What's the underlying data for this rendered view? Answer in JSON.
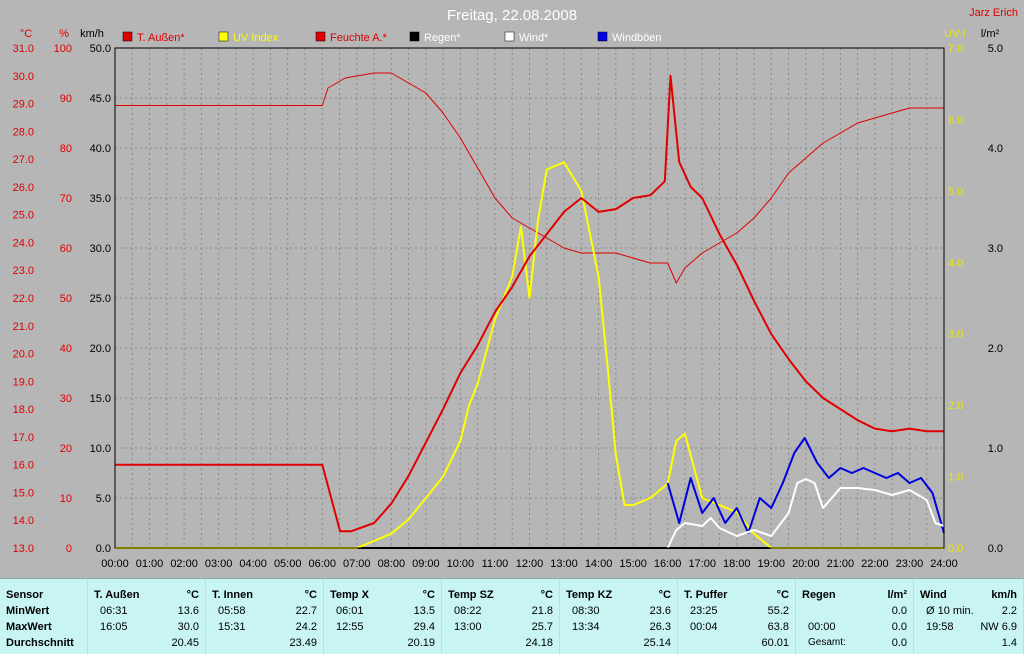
{
  "header": {
    "title": "Freitag, 22.08.2008",
    "author": "Jarz Erich"
  },
  "axes": {
    "temp_unit": "°C",
    "humidity_unit": "%",
    "wind_unit": "km/h",
    "uv_unit": "UV-I",
    "rain_unit": "l/m²",
    "temp_ticks": [
      "31.0",
      "30.0",
      "29.0",
      "28.0",
      "27.0",
      "26.0",
      "25.0",
      "24.0",
      "23.0",
      "22.0",
      "21.0",
      "20.0",
      "19.0",
      "18.0",
      "17.0",
      "16.0",
      "15.0",
      "14.0",
      "13.0"
    ],
    "hum_ticks": [
      "100",
      "90",
      "80",
      "70",
      "60",
      "50",
      "40",
      "30",
      "20",
      "10",
      "0"
    ],
    "wind_ticks": [
      "50.0",
      "45.0",
      "40.0",
      "35.0",
      "30.0",
      "25.0",
      "20.0",
      "15.0",
      "10.0",
      "5.0",
      "0.0"
    ],
    "uv_ticks": [
      "7.0",
      "6.0",
      "5.0",
      "4.0",
      "3.0",
      "2.0",
      "1.0",
      "0.0"
    ],
    "rain_ticks": [
      "5.0",
      "4.0",
      "3.0",
      "2.0",
      "1.0",
      "0.0"
    ],
    "x_ticks": [
      "00:00",
      "01:00",
      "02:00",
      "03:00",
      "04:00",
      "05:00",
      "06:00",
      "07:00",
      "08:00",
      "09:00",
      "10:00",
      "11:00",
      "12:00",
      "13:00",
      "14:00",
      "15:00",
      "16:00",
      "17:00",
      "18:00",
      "19:00",
      "20:00",
      "21:00",
      "22:00",
      "23:00",
      "24:00"
    ]
  },
  "legend": [
    {
      "label": "T. Außen*",
      "color": "#e00000"
    },
    {
      "label": "UV Index",
      "color": "#ffff00"
    },
    {
      "label": "Feuchte A.*",
      "color": "#e00000"
    },
    {
      "label": "Regen*",
      "color": "#000000"
    },
    {
      "label": "Wind*",
      "color": "#ffffff"
    },
    {
      "label": "Windböen",
      "color": "#0000e0"
    }
  ],
  "colors": {
    "temp": "#e00000",
    "humidity": "#e00000",
    "uv": "#ffff00",
    "wind": "#ffffff",
    "gust": "#0000e0",
    "rain": "#000000",
    "grid": "#8a8a8a",
    "plot_bg": "#b6b6b6"
  },
  "chart_data": {
    "type": "line",
    "title": "Freitag, 22.08.2008",
    "x_range": [
      "00:00",
      "24:00"
    ],
    "series": [
      {
        "name": "T. Außen*",
        "axis": "°C",
        "ylim": [
          13.0,
          31.0
        ],
        "points": [
          [
            "00:00",
            16.0
          ],
          [
            "06:00",
            16.0
          ],
          [
            "06:31",
            13.6
          ],
          [
            "06:50",
            13.6
          ],
          [
            "07:30",
            13.9
          ],
          [
            "08:00",
            14.6
          ],
          [
            "08:30",
            15.6
          ],
          [
            "09:00",
            16.8
          ],
          [
            "09:30",
            18.0
          ],
          [
            "10:00",
            19.3
          ],
          [
            "10:30",
            20.3
          ],
          [
            "11:00",
            21.5
          ],
          [
            "11:30",
            22.4
          ],
          [
            "12:00",
            23.5
          ],
          [
            "12:30",
            24.3
          ],
          [
            "13:00",
            25.1
          ],
          [
            "13:30",
            25.6
          ],
          [
            "14:00",
            25.1
          ],
          [
            "14:30",
            25.2
          ],
          [
            "15:00",
            25.6
          ],
          [
            "15:30",
            25.7
          ],
          [
            "15:55",
            26.2
          ],
          [
            "16:05",
            30.0
          ],
          [
            "16:20",
            26.9
          ],
          [
            "16:40",
            26.0
          ],
          [
            "17:00",
            25.6
          ],
          [
            "17:30",
            24.3
          ],
          [
            "18:00",
            23.2
          ],
          [
            "18:30",
            21.9
          ],
          [
            "19:00",
            20.7
          ],
          [
            "19:30",
            19.8
          ],
          [
            "20:00",
            19.0
          ],
          [
            "20:30",
            18.4
          ],
          [
            "21:00",
            18.0
          ],
          [
            "21:30",
            17.6
          ],
          [
            "22:00",
            17.3
          ],
          [
            "22:30",
            17.2
          ],
          [
            "23:00",
            17.3
          ],
          [
            "23:30",
            17.2
          ],
          [
            "24:00",
            17.2
          ]
        ]
      },
      {
        "name": "Feuchte A.*",
        "axis": "%",
        "ylim": [
          0,
          100
        ],
        "points": [
          [
            "00:00",
            88.5
          ],
          [
            "06:00",
            88.5
          ],
          [
            "06:10",
            92
          ],
          [
            "06:40",
            94
          ],
          [
            "07:30",
            95
          ],
          [
            "08:00",
            95
          ],
          [
            "08:30",
            93
          ],
          [
            "09:00",
            91
          ],
          [
            "09:30",
            87
          ],
          [
            "10:00",
            82
          ],
          [
            "10:30",
            76
          ],
          [
            "11:00",
            70
          ],
          [
            "11:30",
            66
          ],
          [
            "12:00",
            64
          ],
          [
            "12:30",
            62
          ],
          [
            "13:00",
            60
          ],
          [
            "13:30",
            59
          ],
          [
            "14:00",
            59
          ],
          [
            "14:30",
            59
          ],
          [
            "15:00",
            58
          ],
          [
            "15:30",
            57
          ],
          [
            "16:00",
            57
          ],
          [
            "16:15",
            53
          ],
          [
            "16:30",
            56
          ],
          [
            "17:00",
            59
          ],
          [
            "17:30",
            61
          ],
          [
            "18:00",
            63
          ],
          [
            "18:30",
            66
          ],
          [
            "19:00",
            70
          ],
          [
            "19:30",
            75
          ],
          [
            "20:00",
            78
          ],
          [
            "20:30",
            81
          ],
          [
            "21:00",
            83
          ],
          [
            "21:30",
            85
          ],
          [
            "22:00",
            86
          ],
          [
            "22:30",
            87
          ],
          [
            "23:00",
            88
          ],
          [
            "24:00",
            88
          ]
        ]
      },
      {
        "name": "UV Index",
        "axis": "UV-I",
        "ylim": [
          0,
          7
        ],
        "points": [
          [
            "00:00",
            0
          ],
          [
            "07:00",
            0
          ],
          [
            "07:30",
            0.1
          ],
          [
            "08:00",
            0.2
          ],
          [
            "08:30",
            0.4
          ],
          [
            "09:00",
            0.7
          ],
          [
            "09:30",
            1.0
          ],
          [
            "10:00",
            1.5
          ],
          [
            "10:15",
            2.0
          ],
          [
            "10:30",
            2.3
          ],
          [
            "11:00",
            3.2
          ],
          [
            "11:30",
            3.8
          ],
          [
            "11:45",
            4.5
          ],
          [
            "12:00",
            3.5
          ],
          [
            "12:15",
            4.6
          ],
          [
            "12:30",
            5.3
          ],
          [
            "13:00",
            5.4
          ],
          [
            "13:15",
            5.2
          ],
          [
            "13:30",
            5.0
          ],
          [
            "14:00",
            3.8
          ],
          [
            "14:15",
            2.6
          ],
          [
            "14:30",
            1.3
          ],
          [
            "14:45",
            0.6
          ],
          [
            "15:00",
            0.6
          ],
          [
            "15:30",
            0.7
          ],
          [
            "16:00",
            0.9
          ],
          [
            "16:15",
            1.5
          ],
          [
            "16:30",
            1.6
          ],
          [
            "17:00",
            0.7
          ],
          [
            "17:30",
            0.6
          ],
          [
            "18:00",
            0.5
          ],
          [
            "18:30",
            0.2
          ],
          [
            "19:00",
            0.0
          ],
          [
            "24:00",
            0.0
          ]
        ]
      },
      {
        "name": "Wind*",
        "axis": "km/h",
        "ylim": [
          0,
          50
        ],
        "points": [
          [
            "16:00",
            0
          ],
          [
            "16:15",
            1.8
          ],
          [
            "16:30",
            2.5
          ],
          [
            "17:00",
            2.2
          ],
          [
            "17:15",
            3.0
          ],
          [
            "17:30",
            2.0
          ],
          [
            "18:00",
            1.2
          ],
          [
            "18:30",
            1.8
          ],
          [
            "19:00",
            1.2
          ],
          [
            "19:30",
            3.5
          ],
          [
            "19:45",
            6.5
          ],
          [
            "20:00",
            6.9
          ],
          [
            "20:15",
            6.5
          ],
          [
            "20:30",
            4.0
          ],
          [
            "21:00",
            6.0
          ],
          [
            "21:30",
            6.0
          ],
          [
            "22:00",
            5.8
          ],
          [
            "22:30",
            5.3
          ],
          [
            "23:00",
            5.8
          ],
          [
            "23:30",
            4.8
          ],
          [
            "23:45",
            2.5
          ],
          [
            "24:00",
            2.2
          ]
        ]
      },
      {
        "name": "Windböen",
        "axis": "km/h",
        "ylim": [
          0,
          50
        ],
        "points": [
          [
            "16:00",
            6.5
          ],
          [
            "16:20",
            2.5
          ],
          [
            "16:40",
            7.0
          ],
          [
            "17:00",
            3.5
          ],
          [
            "17:20",
            5.0
          ],
          [
            "17:40",
            2.5
          ],
          [
            "18:00",
            4.0
          ],
          [
            "18:20",
            1.5
          ],
          [
            "18:40",
            5.0
          ],
          [
            "19:00",
            4.0
          ],
          [
            "19:20",
            6.5
          ],
          [
            "19:40",
            9.5
          ],
          [
            "19:58",
            11.0
          ],
          [
            "20:20",
            8.5
          ],
          [
            "20:40",
            7.0
          ],
          [
            "21:00",
            8.0
          ],
          [
            "21:20",
            7.5
          ],
          [
            "21:40",
            8.0
          ],
          [
            "22:00",
            7.5
          ],
          [
            "22:20",
            7.0
          ],
          [
            "22:40",
            7.5
          ],
          [
            "23:00",
            6.5
          ],
          [
            "23:20",
            7.0
          ],
          [
            "23:40",
            5.5
          ],
          [
            "24:00",
            1.5
          ]
        ]
      },
      {
        "name": "Regen*",
        "axis": "l/m²",
        "ylim": [
          0,
          5
        ],
        "points": [
          [
            "00:00",
            0
          ],
          [
            "24:00",
            0
          ]
        ]
      }
    ]
  },
  "stats": {
    "row_labels": [
      "Sensor",
      "MinWert",
      "MaxWert",
      "Durchschnitt"
    ],
    "columns": [
      {
        "name": "T. Außen",
        "unit": "°C",
        "min_time": "06:31",
        "min": "13.6",
        "max_time": "16:05",
        "max": "30.0",
        "avg_label": "",
        "avg": "20.45"
      },
      {
        "name": "T. Innen",
        "unit": "°C",
        "min_time": "05:58",
        "min": "22.7",
        "max_time": "15:31",
        "max": "24.2",
        "avg_label": "",
        "avg": "23.49"
      },
      {
        "name": "Temp X",
        "unit": "°C",
        "min_time": "06:01",
        "min": "13.5",
        "max_time": "12:55",
        "max": "29.4",
        "avg_label": "",
        "avg": "20.19"
      },
      {
        "name": "Temp SZ",
        "unit": "°C",
        "min_time": "08:22",
        "min": "21.8",
        "max_time": "13:00",
        "max": "25.7",
        "avg_label": "",
        "avg": "24.18"
      },
      {
        "name": "Temp KZ",
        "unit": "°C",
        "min_time": "08:30",
        "min": "23.6",
        "max_time": "13:34",
        "max": "26.3",
        "avg_label": "",
        "avg": "25.14"
      },
      {
        "name": "T. Puffer",
        "unit": "°C",
        "min_time": "23:25",
        "min": "55.2",
        "max_time": "00:04",
        "max": "63.8",
        "avg_label": "",
        "avg": "60.01"
      },
      {
        "name": "Regen",
        "unit": "l/m²",
        "min_time": "",
        "min": "0.0",
        "max_time": "00:00",
        "max": "0.0",
        "avg_label": "Gesamt:",
        "avg": "0.0"
      },
      {
        "name": "Wind",
        "unit": "km/h",
        "min_time": "Ø 10 min.",
        "min": "2.2",
        "max_time": "19:58",
        "max": "NW 6.9",
        "avg_label": "",
        "avg": "1.4"
      }
    ]
  }
}
